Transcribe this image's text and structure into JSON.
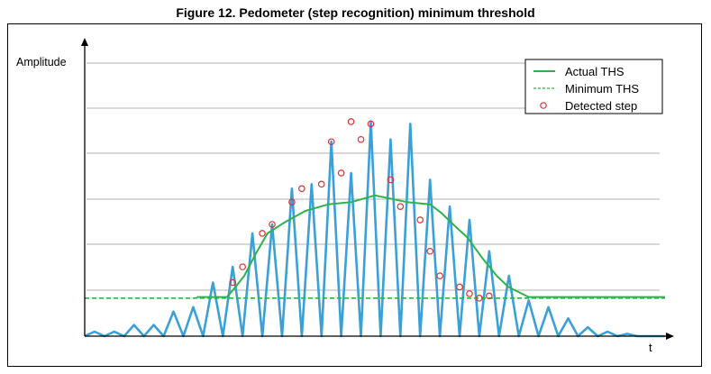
{
  "figure_title": "Figure 12. Pedometer (step recognition) minimum threshold",
  "chart_data": {
    "type": "line",
    "title": "Figure 12. Pedometer (step recognition) minimum threshold",
    "xlabel": "t",
    "ylabel": "Amplitude",
    "grid": true,
    "legend_position": "top-right",
    "colors": {
      "signal": "#3aa0d8",
      "actual_ths": "#2db34a",
      "minimum_ths": "#2db34a",
      "detected": "#e03030",
      "grid": "#b0b0b0"
    },
    "legend": [
      {
        "name": "Actual THS",
        "style": "solid-line"
      },
      {
        "name": "Minimum THS",
        "style": "dashed-line"
      },
      {
        "name": "Detected step",
        "style": "circle-marker"
      }
    ],
    "xlim": [
      0,
      100
    ],
    "ylim": [
      0,
      100
    ],
    "series": [
      {
        "name": "Signal",
        "kind": "polyline",
        "x": [
          0,
          1.7,
          3.4,
          5.1,
          6.8,
          8.5,
          10.2,
          11.9,
          13.6,
          15.3,
          17.0,
          18.7,
          20.4,
          22.1,
          23.8,
          25.5,
          27.2,
          28.9,
          30.6,
          32.3,
          34.0,
          35.7,
          37.4,
          39.1,
          40.8,
          42.5,
          44.2,
          45.9,
          47.6,
          49.3,
          51.0,
          52.7,
          54.4,
          56.1,
          57.8,
          59.5,
          61.2,
          62.9,
          64.6,
          66.3,
          68.0,
          69.7,
          71.4,
          73.1,
          74.8,
          76.5,
          78.2,
          79.9,
          81.6,
          83.3,
          85.0,
          86.7,
          88.4,
          90.1,
          91.8,
          93.5,
          95.2,
          100
        ],
        "y": [
          0,
          2,
          0,
          2,
          0,
          5,
          0,
          5,
          0,
          11,
          0,
          13,
          0,
          24,
          0,
          31,
          0,
          46,
          0,
          50,
          0,
          66,
          0,
          68,
          0,
          87,
          0,
          73,
          0,
          96,
          0,
          88,
          0,
          95,
          0,
          70,
          0,
          58,
          0,
          52,
          0,
          38,
          0,
          27,
          0,
          16,
          0,
          13,
          0,
          8,
          0,
          4,
          0,
          2,
          0,
          1,
          0,
          0
        ]
      },
      {
        "name": "Actual THS",
        "kind": "polyline",
        "x": [
          19.3,
          24.5,
          26.0,
          27.5,
          29.5,
          31.5,
          34.5,
          38.0,
          42.0,
          46.0,
          50.0,
          55.5,
          59.5,
          61.5,
          63.5,
          66.0,
          68.5,
          71.0,
          73.0,
          76.5,
          100
        ],
        "y": [
          17.5,
          17.5,
          22,
          27,
          37,
          46,
          51,
          56,
          59,
          60,
          63,
          60,
          59,
          55,
          50,
          44,
          35,
          27,
          22,
          17.5,
          17.5
        ]
      },
      {
        "name": "Minimum THS",
        "kind": "dashed-line",
        "x": [
          0,
          100
        ],
        "y": [
          17,
          17
        ]
      },
      {
        "name": "Detected step",
        "kind": "markers",
        "x": [
          25.5,
          27.2,
          30.6,
          32.3,
          35.7,
          37.4,
          40.8,
          42.5,
          44.2,
          45.9,
          47.6,
          49.3,
          52.7,
          54.4,
          57.8,
          59.5,
          61.2,
          64.6,
          66.3,
          68.0,
          69.7
        ],
        "y": [
          24,
          31,
          46,
          50,
          60,
          66,
          68,
          87,
          73,
          96,
          88,
          95,
          70,
          58,
          52,
          38,
          27,
          22,
          19,
          17,
          18
        ]
      }
    ]
  }
}
